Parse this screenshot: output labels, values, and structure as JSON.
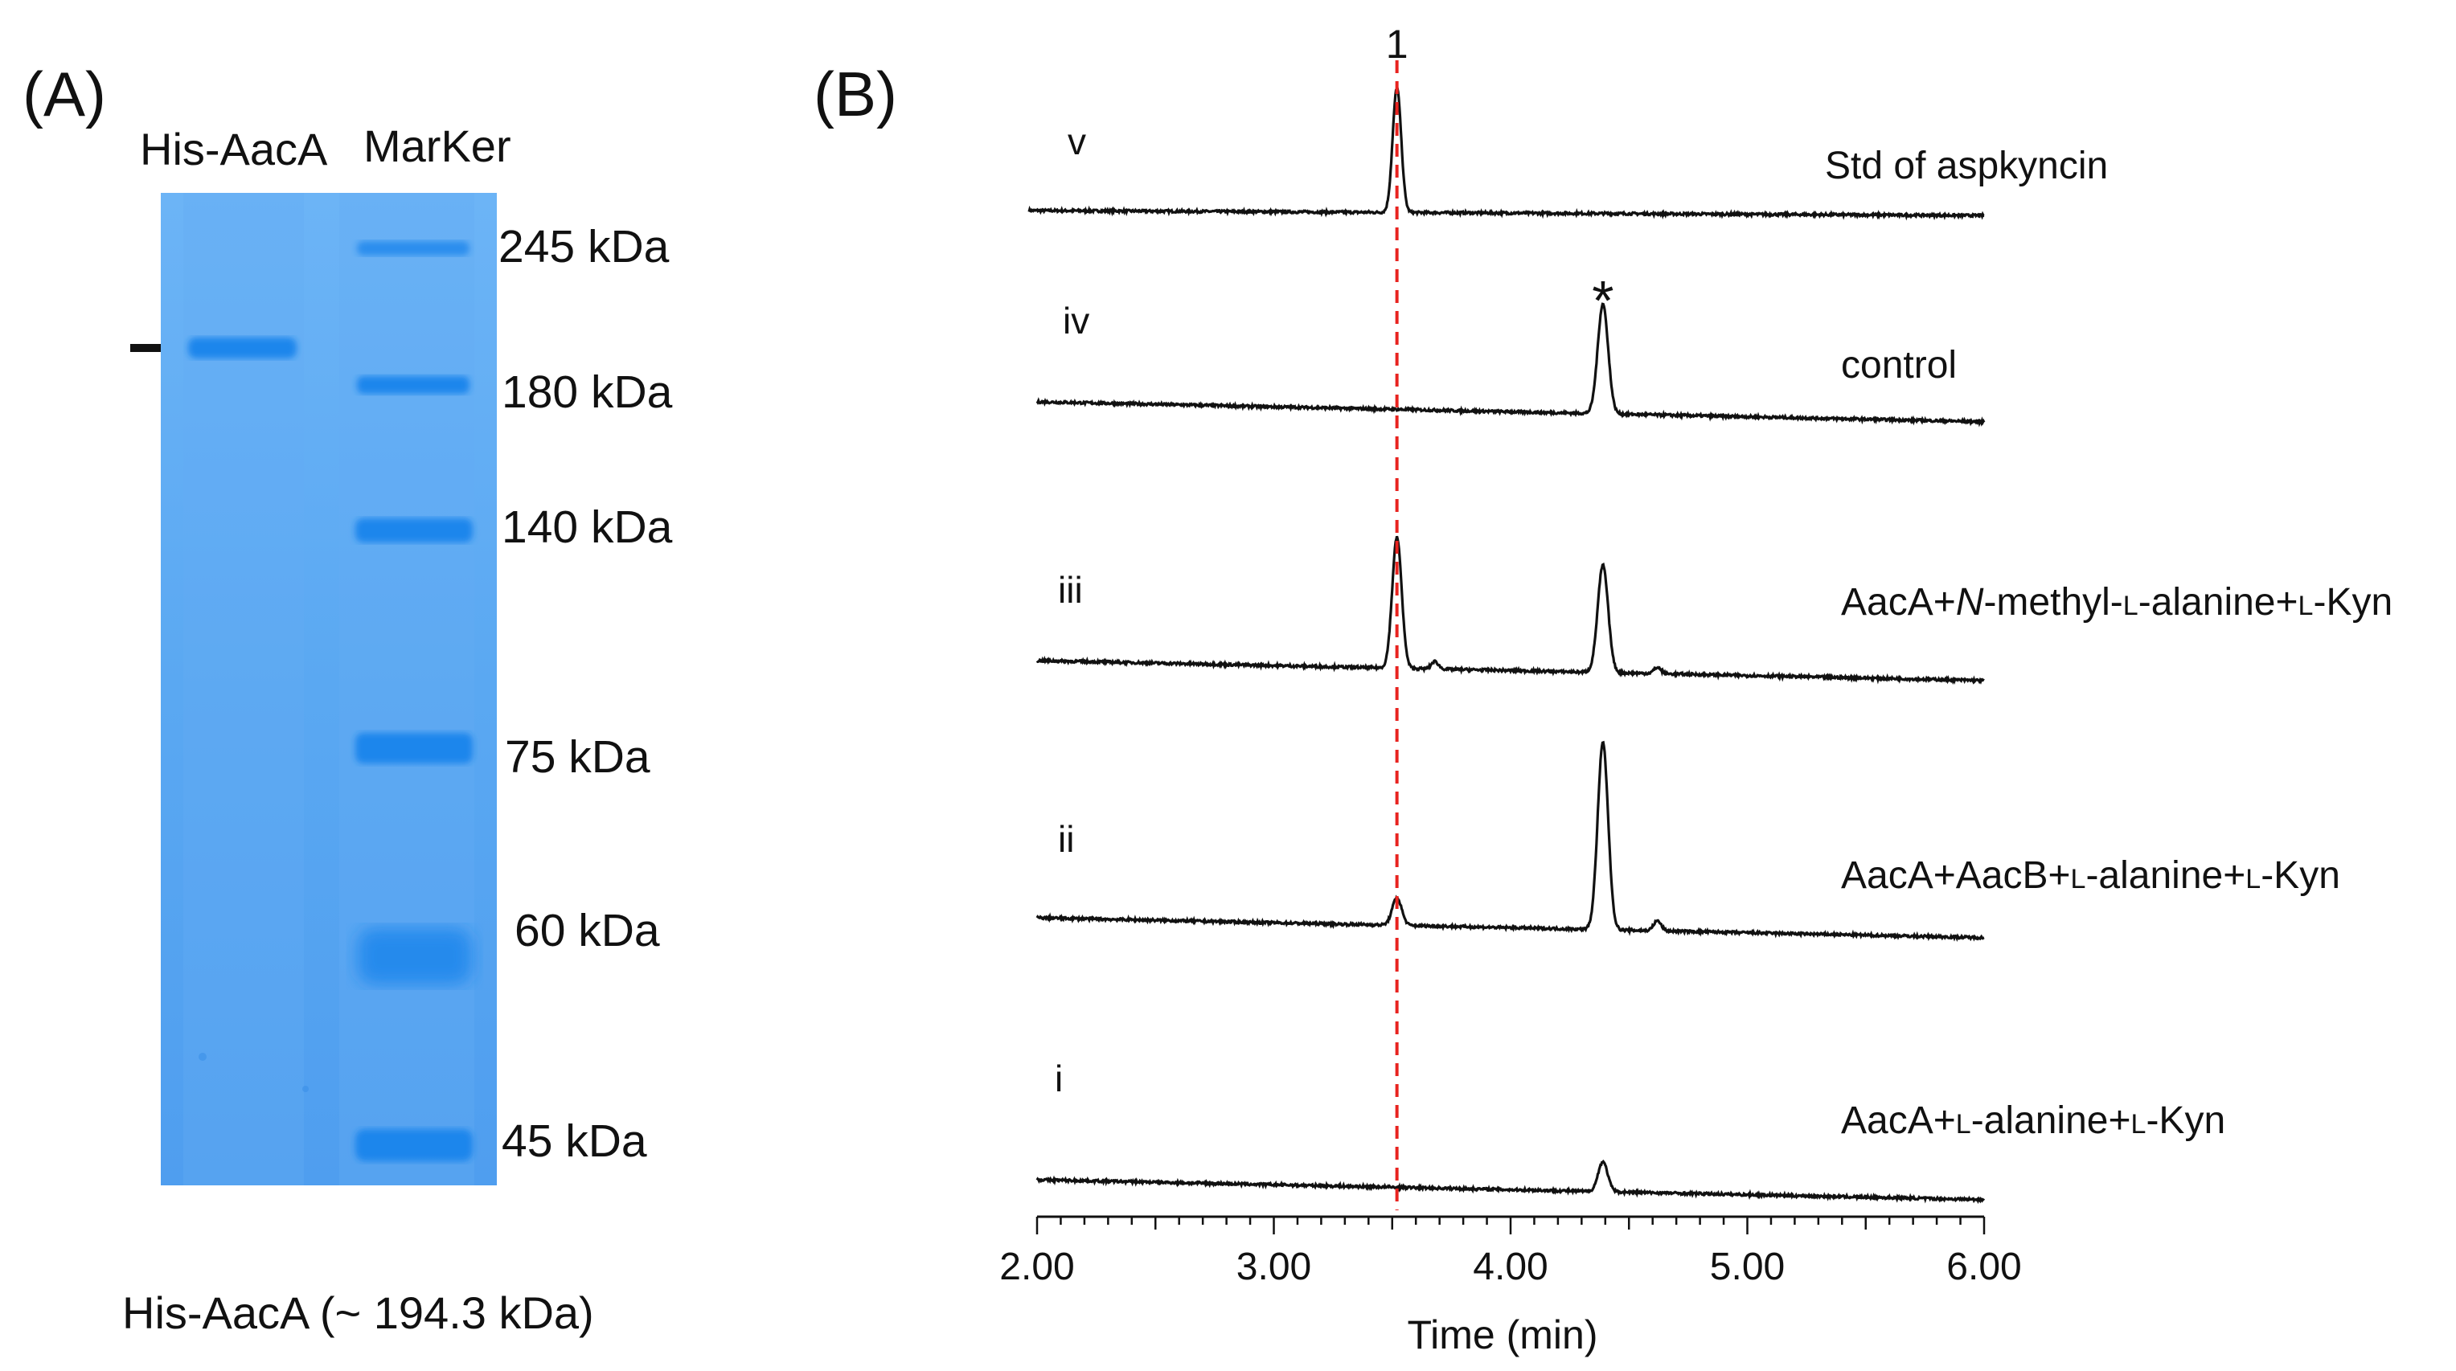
{
  "panel_a": {
    "label": "(A)",
    "lanes": [
      "His-AacA",
      "MarKer"
    ],
    "markers": [
      "245 kDa",
      "180 kDa",
      "140 kDa",
      "75 kDa",
      "60 kDa",
      "45 kDa"
    ],
    "arrow": "arrow-right",
    "caption": "His-AacA (~ 194.3 kDa)",
    "gel_color": "#5aa8f2",
    "band_color": "#1a86ec"
  },
  "panel_b": {
    "label": "(B)"
  },
  "chart_data": {
    "type": "line",
    "title": "",
    "xlabel": "Time (min)",
    "ylabel": "",
    "xlim": [
      2.0,
      6.0
    ],
    "xticks": [
      "2.00",
      "3.00",
      "4.00",
      "5.00",
      "6.00"
    ],
    "reference_line": {
      "x": 3.52,
      "label": "1",
      "color": "#e8231f",
      "style": "dashed"
    },
    "grid": false,
    "series": [
      {
        "id": "v",
        "roman": "v",
        "name": "Std of aspkyncin",
        "baseline": [
          0.0,
          -0.04
        ],
        "peaks": [
          {
            "t": 3.52,
            "h": 1.0,
            "w": 0.018
          }
        ]
      },
      {
        "id": "iv",
        "roman": "iv",
        "name": "control",
        "baseline": [
          0.0,
          -0.16
        ],
        "peaks": [
          {
            "t": 4.39,
            "h": 0.88,
            "w": 0.022
          }
        ],
        "annotation": {
          "t": 4.39,
          "text": "*"
        }
      },
      {
        "id": "iii",
        "roman": "iii",
        "name_parts": [
          {
            "t": "AacA+",
            "s": "n"
          },
          {
            "t": "N",
            "s": "i"
          },
          {
            "t": "-methyl-",
            "s": "n"
          },
          {
            "t": "l",
            "s": "sc"
          },
          {
            "t": "-alanine+",
            "s": "n"
          },
          {
            "t": "l",
            "s": "sc"
          },
          {
            "t": "-Kyn",
            "s": "n"
          }
        ],
        "baseline": [
          0.0,
          -0.16
        ],
        "peaks": [
          {
            "t": 3.52,
            "h": 1.05,
            "w": 0.02
          },
          {
            "t": 3.68,
            "h": 0.06,
            "w": 0.015
          },
          {
            "t": 4.39,
            "h": 0.86,
            "w": 0.022
          },
          {
            "t": 4.62,
            "h": 0.05,
            "w": 0.015
          }
        ]
      },
      {
        "id": "ii",
        "roman": "ii",
        "name_parts": [
          {
            "t": "AacA+AacB+",
            "s": "n"
          },
          {
            "t": "l",
            "s": "sc"
          },
          {
            "t": "-alanine+",
            "s": "n"
          },
          {
            "t": "l",
            "s": "sc"
          },
          {
            "t": "-Kyn",
            "s": "n"
          }
        ],
        "baseline": [
          0.0,
          -0.16
        ],
        "peaks": [
          {
            "t": 3.52,
            "h": 0.22,
            "w": 0.02
          },
          {
            "t": 4.39,
            "h": 1.5,
            "w": 0.022
          },
          {
            "t": 4.62,
            "h": 0.08,
            "w": 0.016
          }
        ]
      },
      {
        "id": "i",
        "roman": "i",
        "name_parts": [
          {
            "t": "AacA+",
            "s": "n"
          },
          {
            "t": "l",
            "s": "sc"
          },
          {
            "t": "-alanine+",
            "s": "n"
          },
          {
            "t": "l",
            "s": "sc"
          },
          {
            "t": "-Kyn",
            "s": "n"
          }
        ],
        "baseline": [
          0.0,
          -0.16
        ],
        "peaks": [
          {
            "t": 4.39,
            "h": 0.24,
            "w": 0.02
          }
        ]
      }
    ]
  }
}
